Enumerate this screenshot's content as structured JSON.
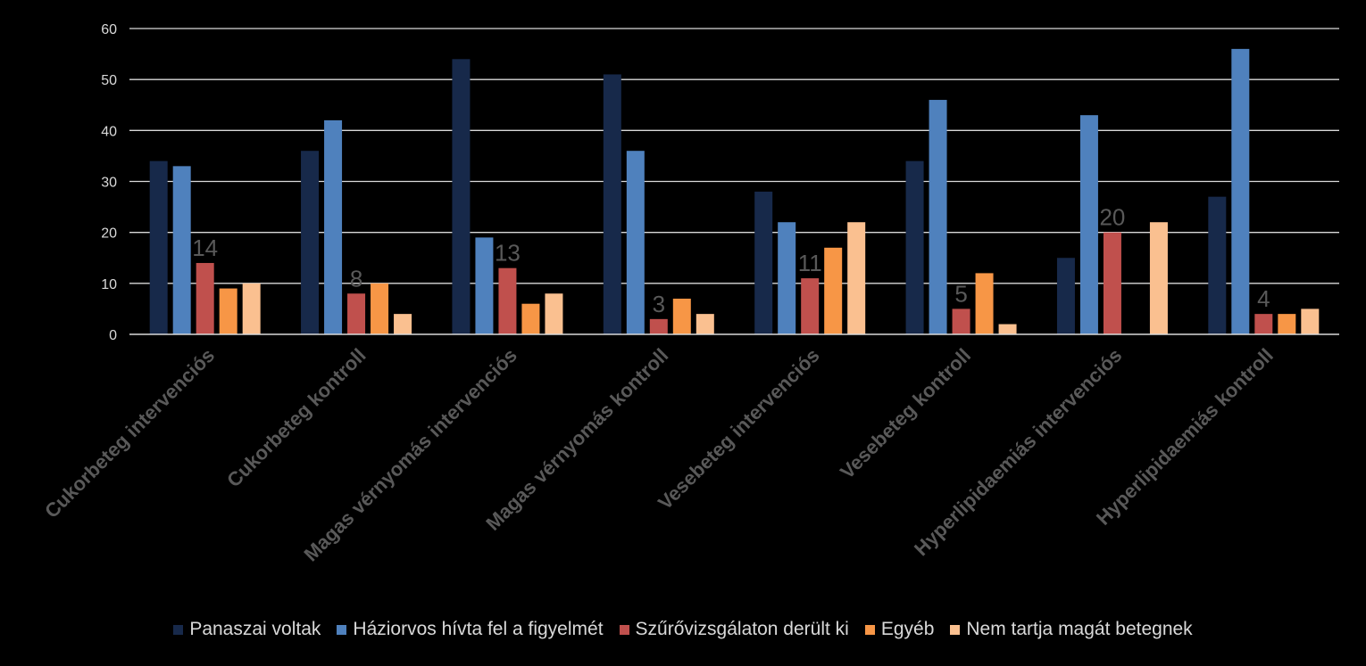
{
  "chart_data": {
    "type": "bar",
    "categories": [
      "Cukorbeteg intervenciós",
      "Cukorbeteg kontroll",
      "Magas vérnyomás intervenciós",
      "Magas vérnyomás kontroll",
      "Vesebeteg intervenciós",
      "Vesebeteg kontroll",
      "Hyperlipidaemiás intervenciós",
      "Hyperlipidaemiás kontroll"
    ],
    "series": [
      {
        "name": "Panaszai voltak",
        "color": "#17294a",
        "values": [
          34,
          36,
          54,
          51,
          28,
          34,
          15,
          27
        ]
      },
      {
        "name": "Háziorvos hívta fel a figyelmét",
        "color": "#4f81bd",
        "values": [
          33,
          42,
          19,
          36,
          22,
          46,
          43,
          56
        ]
      },
      {
        "name": "Szűrővizsgálaton derült ki",
        "color": "#c0504d",
        "values": [
          14,
          8,
          13,
          3,
          11,
          5,
          20,
          4
        ],
        "data_labels": [
          "14",
          "8",
          "13",
          "3",
          "11",
          "5",
          "20",
          "4"
        ]
      },
      {
        "name": "Egyéb",
        "color": "#f79646",
        "values": [
          9,
          10,
          6,
          7,
          17,
          12,
          0,
          4
        ]
      },
      {
        "name": "Nem tartja magát betegnek",
        "color": "#fac090",
        "values": [
          10,
          4,
          8,
          4,
          22,
          2,
          22,
          5
        ]
      }
    ],
    "y_ticks": [
      "0",
      "10",
      "20",
      "30",
      "40",
      "50",
      "60"
    ],
    "ylim": [
      0,
      60
    ],
    "grid": true,
    "legend_position": "bottom"
  }
}
